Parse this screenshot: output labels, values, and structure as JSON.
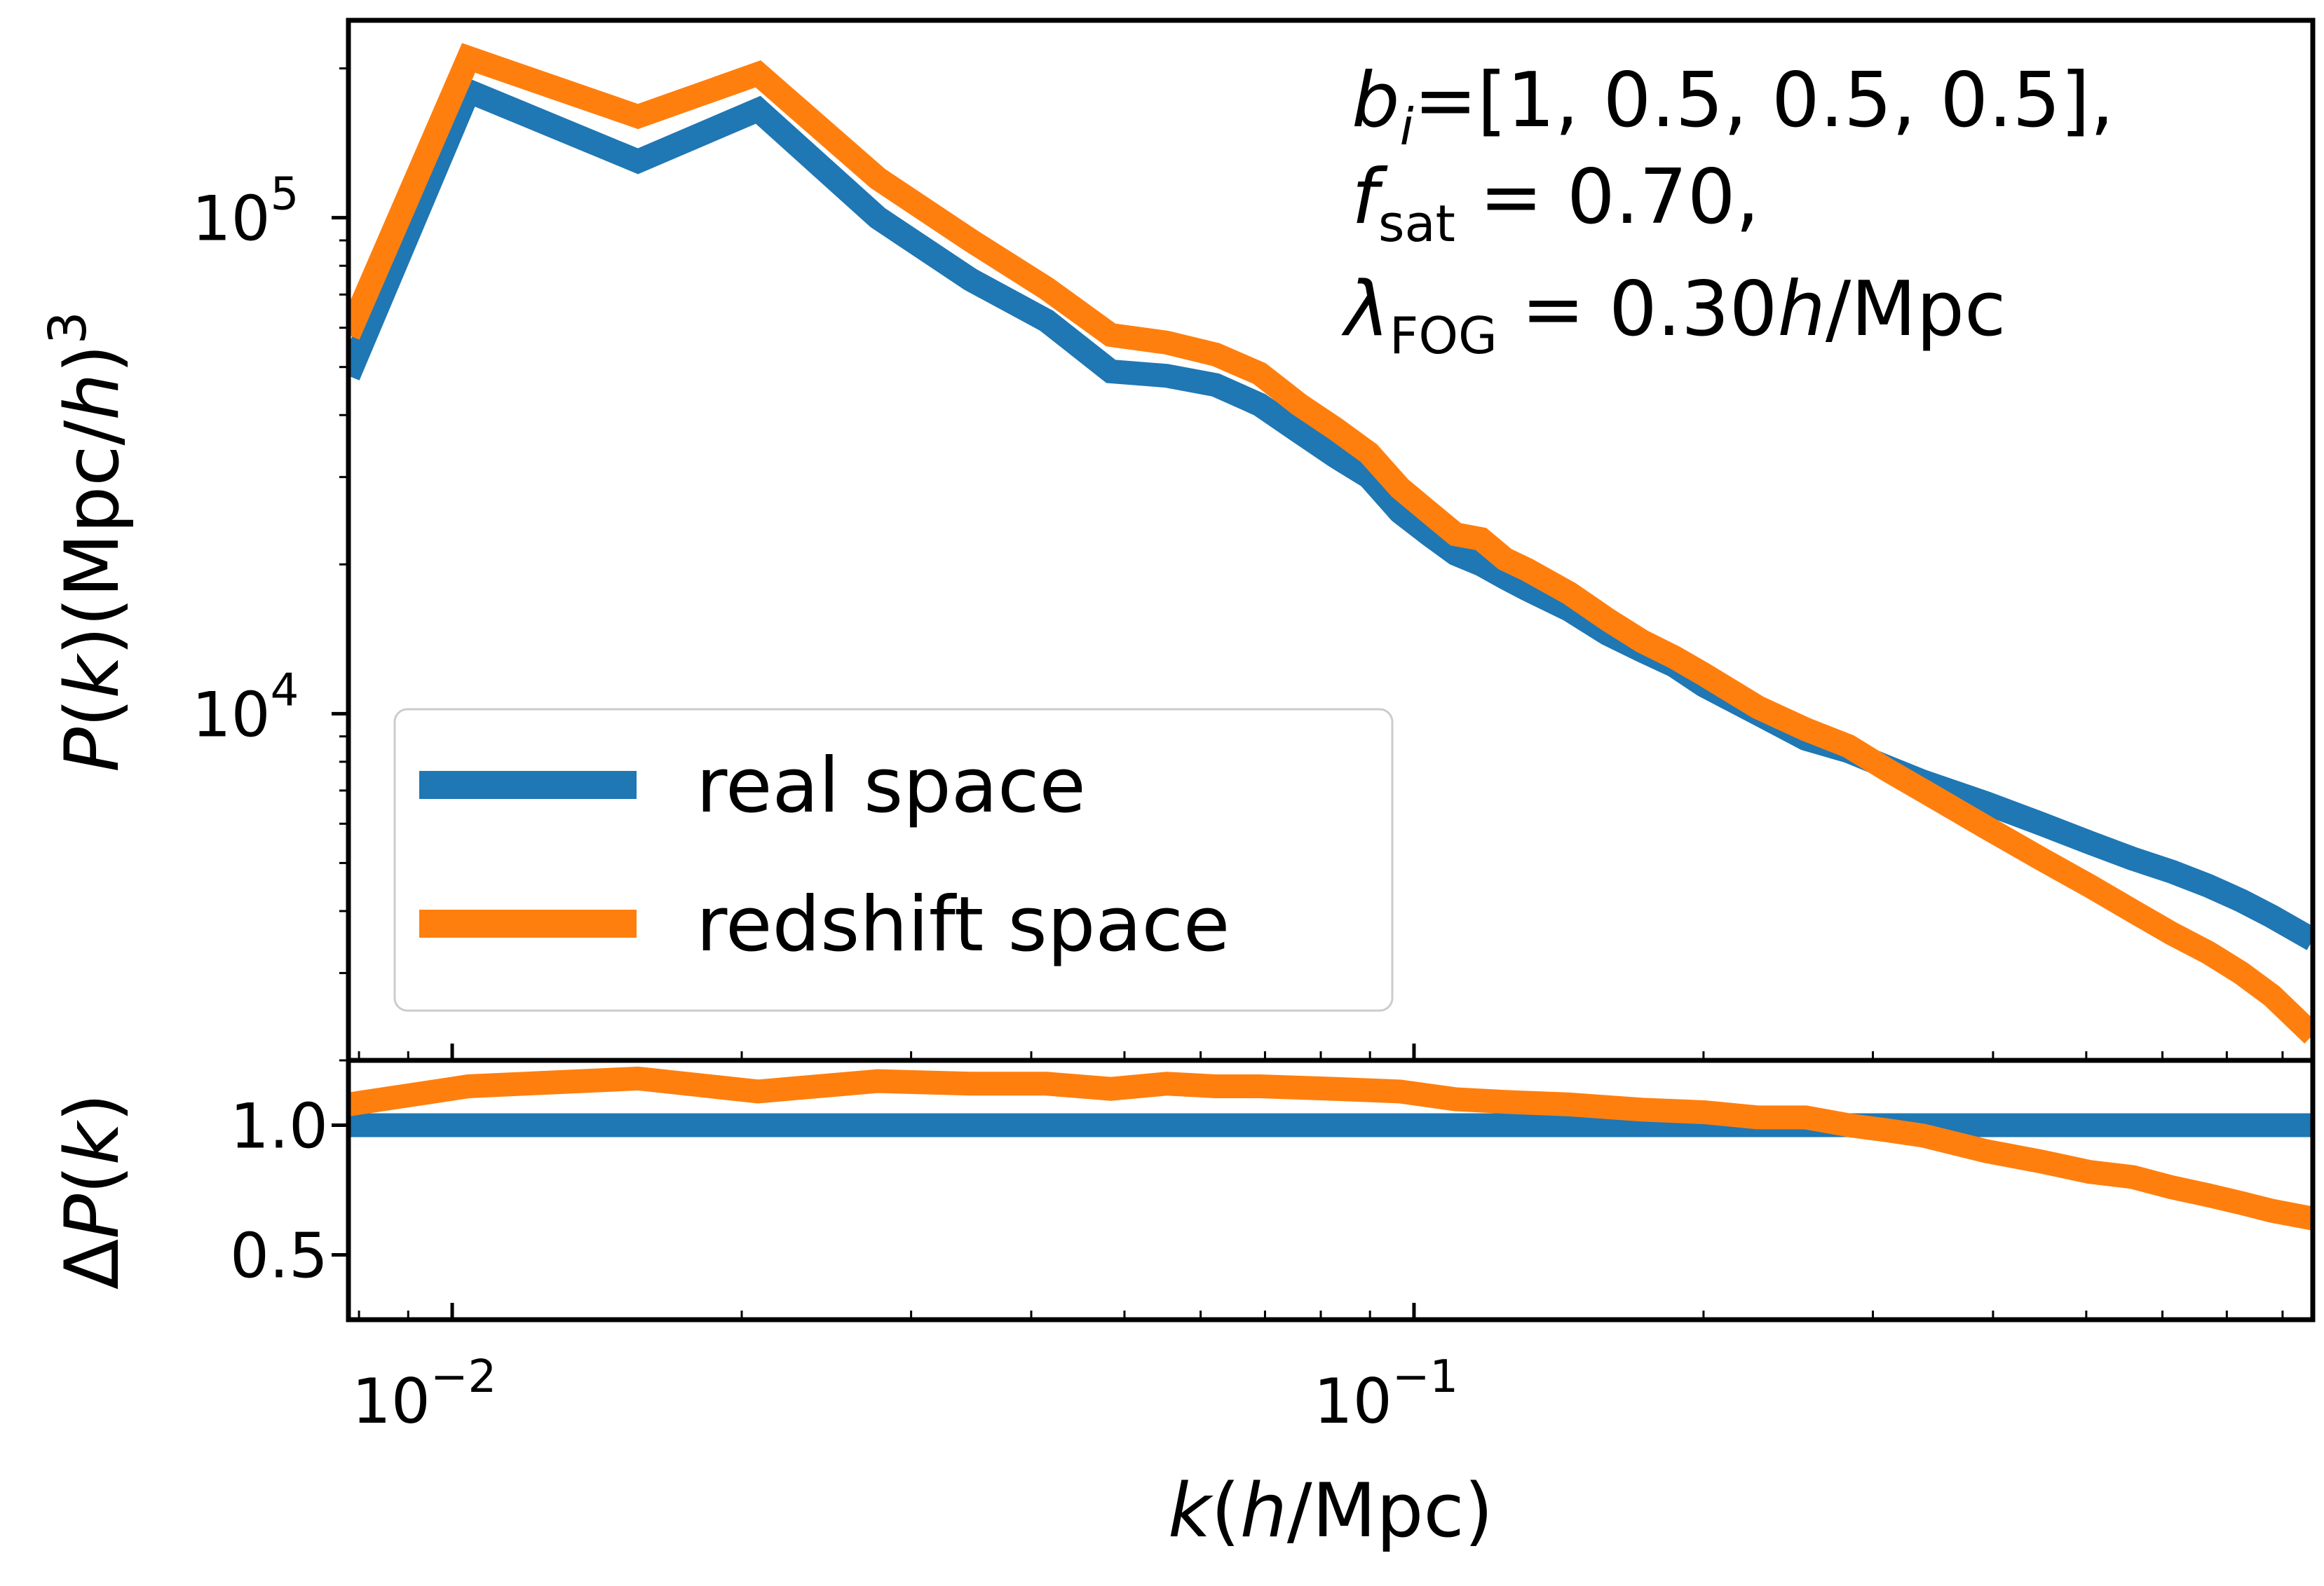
{
  "chart_data": [
    {
      "panel": "main",
      "type": "line",
      "xscale": "log",
      "yscale": "log",
      "xlim": [
        0.0078,
        0.86
      ],
      "ylim": [
        2000,
        250000
      ],
      "ylabel": "P(k)(Mpc/h)^3",
      "ytick_labels": [
        {
          "value": 100000,
          "base": "10",
          "exp": "5"
        },
        {
          "value": 10000,
          "base": "10",
          "exp": "4"
        }
      ],
      "annotation": {
        "line1": "b_i=[1, 0.5, 0.5, 0.5],",
        "line2": "f_sat = 0.70,",
        "line3": "λ_FOG = 0.30h/Mpc"
      },
      "legend_position": "lower-left",
      "series": [
        {
          "name": "real space",
          "color": "#1f77b4",
          "x": [
            0.0078,
            0.0104,
            0.0156,
            0.0208,
            0.0277,
            0.0346,
            0.0415,
            0.0484,
            0.0553,
            0.0622,
            0.0691,
            0.076,
            0.0829,
            0.0898,
            0.0967,
            0.1036,
            0.1105,
            0.1174,
            0.1243,
            0.1312,
            0.145,
            0.1588,
            0.1726,
            0.1864,
            0.2002,
            0.2278,
            0.2554,
            0.283,
            0.3106,
            0.3382,
            0.3934,
            0.4486,
            0.5038,
            0.559,
            0.6142,
            0.6694,
            0.7246,
            0.7798,
            0.86
          ],
          "y": [
            48000,
            180000,
            130000,
            165000,
            100000,
            75000,
            62000,
            49000,
            48000,
            46000,
            42000,
            37000,
            33000,
            30000,
            25500,
            23000,
            21000,
            20000,
            18800,
            17800,
            16200,
            14500,
            13400,
            12500,
            11400,
            10000,
            8900,
            8400,
            7800,
            7300,
            6600,
            6000,
            5500,
            5100,
            4800,
            4500,
            4200,
            3900,
            3500
          ]
        },
        {
          "name": "redshift space",
          "color": "#ff7f0e",
          "x": [
            0.0078,
            0.0104,
            0.0156,
            0.0208,
            0.0277,
            0.0346,
            0.0415,
            0.0484,
            0.0553,
            0.0622,
            0.0691,
            0.076,
            0.0829,
            0.0898,
            0.0967,
            0.1036,
            0.1105,
            0.1174,
            0.1243,
            0.1312,
            0.145,
            0.1588,
            0.1726,
            0.1864,
            0.2002,
            0.2278,
            0.2554,
            0.283,
            0.3106,
            0.3382,
            0.3934,
            0.4486,
            0.5038,
            0.559,
            0.6142,
            0.6694,
            0.7246,
            0.7798,
            0.86
          ],
          "y": [
            58000,
            210000,
            160000,
            195000,
            120000,
            90000,
            72000,
            58000,
            56000,
            53000,
            48500,
            42000,
            37500,
            33500,
            28500,
            25500,
            23000,
            22500,
            20500,
            19500,
            17500,
            15500,
            14000,
            13000,
            12000,
            10300,
            9300,
            8600,
            7700,
            7000,
            5900,
            5100,
            4500,
            4000,
            3600,
            3300,
            3000,
            2700,
            2250
          ]
        }
      ]
    },
    {
      "panel": "ratio",
      "type": "line",
      "xscale": "log",
      "xlim": [
        0.0078,
        0.86
      ],
      "ylim": [
        0.25,
        1.25
      ],
      "xlabel": "k(h/Mpc)",
      "ylabel": "ΔP(k)",
      "xtick_labels": [
        {
          "value": 0.01,
          "base": "10",
          "exp": "−2"
        },
        {
          "value": 0.1,
          "base": "10",
          "exp": "−1"
        }
      ],
      "ytick_labels": [
        {
          "value": 1.0,
          "label": "1.0"
        },
        {
          "value": 0.5,
          "label": "0.5"
        }
      ],
      "series": [
        {
          "color": "#1f77b4",
          "x": [
            0.0078,
            0.86
          ],
          "y": [
            1.0,
            1.0
          ]
        },
        {
          "color": "#ff7f0e",
          "x": [
            0.0078,
            0.0104,
            0.0156,
            0.0208,
            0.0277,
            0.0346,
            0.0415,
            0.0484,
            0.0553,
            0.0622,
            0.0691,
            0.0829,
            0.0967,
            0.1105,
            0.1243,
            0.145,
            0.1726,
            0.2002,
            0.2278,
            0.2554,
            0.283,
            0.3106,
            0.3382,
            0.3934,
            0.4486,
            0.5038,
            0.559,
            0.6142,
            0.6694,
            0.7246,
            0.7798,
            0.86
          ],
          "y": [
            1.08,
            1.15,
            1.18,
            1.13,
            1.17,
            1.16,
            1.16,
            1.14,
            1.16,
            1.15,
            1.15,
            1.14,
            1.13,
            1.1,
            1.09,
            1.08,
            1.06,
            1.05,
            1.03,
            1.03,
            1.0,
            0.98,
            0.96,
            0.9,
            0.86,
            0.82,
            0.8,
            0.76,
            0.73,
            0.7,
            0.67,
            0.64
          ]
        }
      ]
    }
  ]
}
